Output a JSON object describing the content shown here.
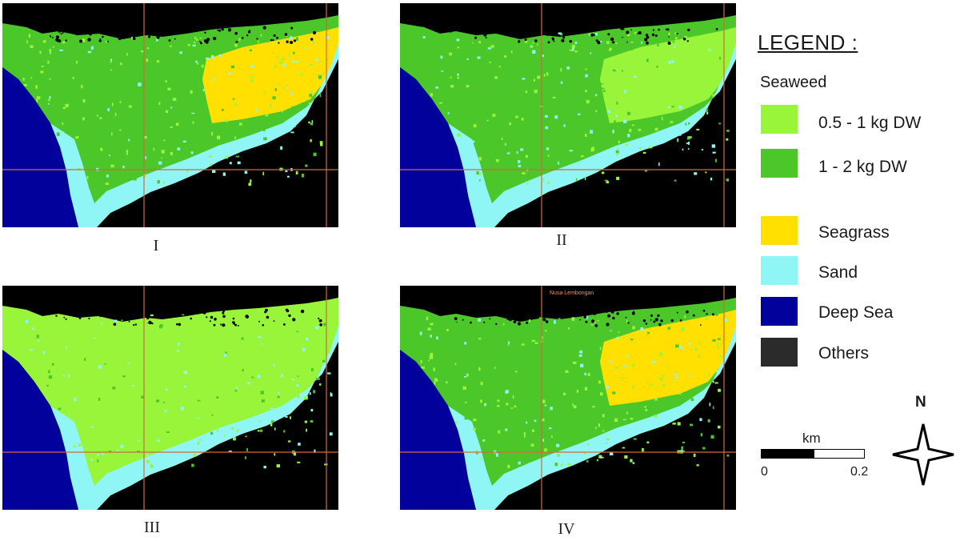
{
  "panels": [
    {
      "label": "I",
      "variant": "original"
    },
    {
      "label": "II",
      "variant": "light"
    },
    {
      "label": "III",
      "variant": "all-light"
    },
    {
      "label": "IV",
      "variant": "original"
    }
  ],
  "place_name": "Nusa Lembongan",
  "legend": {
    "title": "LEGEND :",
    "seaweed_heading": "Seaweed",
    "items": [
      {
        "label": "0.5 - 1 kg DW",
        "color": "#99f53a"
      },
      {
        "label": "1 - 2 kg DW",
        "color": "#4cc72a"
      },
      {
        "label": "Seagrass",
        "color": "#ffe000"
      },
      {
        "label": "Sand",
        "color": "#8ff5f5"
      },
      {
        "label": "Deep Sea",
        "color": "#03019c"
      },
      {
        "label": "Others",
        "color": "#2b2b2b"
      }
    ]
  },
  "scale": {
    "unit": "km",
    "min": "0",
    "max": "0.2"
  },
  "north": {
    "label": "N"
  },
  "colors": {
    "grid_line": "#d2693c",
    "background": "#000000"
  }
}
